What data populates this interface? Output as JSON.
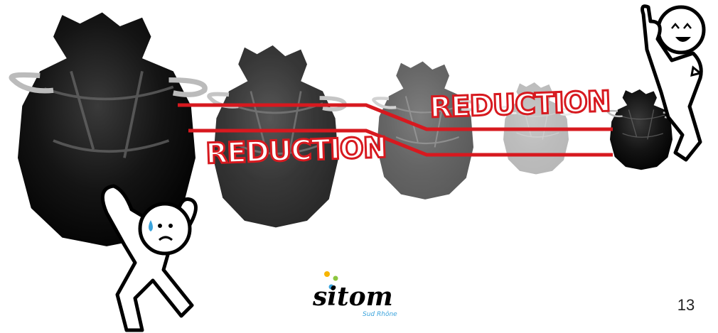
{
  "labels": [
    "REDUCTION",
    "REDUCTION"
  ],
  "logo": {
    "name": "sitom",
    "tagline": "Sud Rhône"
  },
  "page_number": "13"
}
